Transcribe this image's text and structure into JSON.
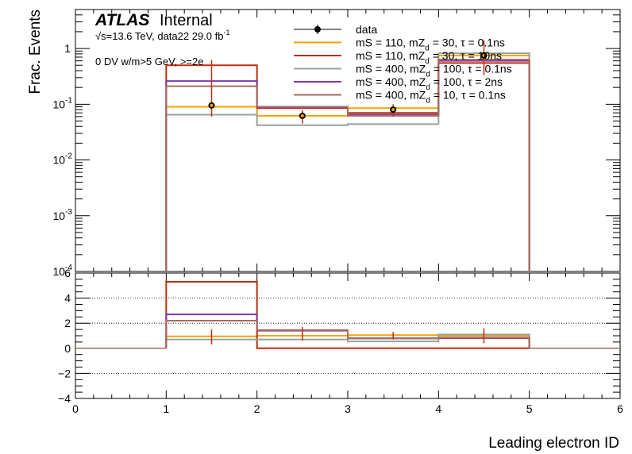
{
  "chart_data": [
    {
      "type": "step-histogram",
      "atlas_label": "ATLAS",
      "atlas_status": "Internal",
      "energy_text": "√s=13.6 TeV, data22 29.0 fb",
      "energy_sup": "-1",
      "selection_text": "0 DV w/m>5 GeV, >=2e",
      "ylabel": "Frac. Events",
      "yscale": "log",
      "ylim": [
        0.0001,
        5
      ],
      "xlim": [
        0,
        6
      ],
      "bin_edges": [
        1,
        2,
        3,
        4,
        5
      ],
      "y_tick_labels": [
        {
          "value": 1,
          "base": "1",
          "exp": ""
        },
        {
          "value": 0.1,
          "base": "10",
          "exp": "-1"
        },
        {
          "value": 0.01,
          "base": "10",
          "exp": "-2"
        },
        {
          "value": 0.001,
          "base": "10",
          "exp": "-3"
        },
        {
          "value": 0.0001,
          "base": "10",
          "exp": "-4"
        }
      ],
      "data": {
        "name": "data",
        "x": [
          1.5,
          2.5,
          3.5,
          4.5
        ],
        "y": [
          0.095,
          0.062,
          0.08,
          0.75
        ],
        "err": [
          [
            0.06,
            0.62
          ],
          [
            0.045,
            0.078
          ],
          [
            0.06,
            0.1
          ],
          [
            0.33,
            1.4
          ]
        ],
        "color": "#000000"
      },
      "series": [
        {
          "legend": "mS = 110, mZ_d = 30, τ = 0.1ns",
          "color": "#f5a300",
          "values": [
            0.09,
            0.062,
            0.085,
            0.75
          ]
        },
        {
          "legend": "mS = 110, mZ_d = 30, τ = 10ns",
          "color": "#c02d0c",
          "values": [
            0.5,
            0.085,
            0.07,
            0.55
          ]
        },
        {
          "legend": "mS = 400, mZ_d = 100, τ = 0.1ns",
          "color": "#94a4a2",
          "values": [
            0.065,
            0.042,
            0.044,
            0.82
          ]
        },
        {
          "legend": "mS = 400, mZ_d = 100, τ = 2ns",
          "color": "#8036b5",
          "values": [
            0.26,
            0.088,
            0.065,
            0.6
          ]
        },
        {
          "legend": "mS = 400, mZ_d = 10, τ = 0.1ns",
          "color": "#a96b59",
          "values": [
            0.21,
            0.09,
            0.062,
            0.63
          ]
        }
      ]
    },
    {
      "type": "step-histogram-ratio",
      "xlabel": "Leading electron ID",
      "ylim": [
        -4,
        6
      ],
      "x_ticks": [
        0,
        1,
        2,
        3,
        4,
        5,
        6
      ],
      "y_ticks": [
        -4,
        -2,
        0,
        2,
        4,
        6
      ],
      "grid_y": [
        -4,
        -2,
        2,
        4
      ],
      "data_ratio": {
        "x": [
          1.5,
          2.5,
          3.5,
          4.5
        ],
        "y": [
          1.0,
          1.0,
          1.0,
          1.0
        ],
        "err": [
          [
            0.3,
            1.5
          ],
          [
            0.6,
            1.7
          ],
          [
            0.7,
            1.3
          ],
          [
            0.4,
            1.6
          ]
        ]
      },
      "series_ratio": [
        {
          "color": "#f5a300",
          "values": [
            0.95,
            1.0,
            1.05,
            1.0
          ]
        },
        {
          "color": "#c02d0c",
          "values": [
            5.3,
            0.0,
            0.0,
            0.0
          ]
        },
        {
          "color": "#94a4a2",
          "values": [
            0.7,
            0.7,
            0.55,
            1.1
          ]
        },
        {
          "color": "#8036b5",
          "values": [
            2.7,
            1.4,
            0.8,
            0.8
          ]
        },
        {
          "color": "#a96b59",
          "values": [
            2.2,
            1.45,
            0.78,
            0.85
          ]
        }
      ]
    }
  ]
}
